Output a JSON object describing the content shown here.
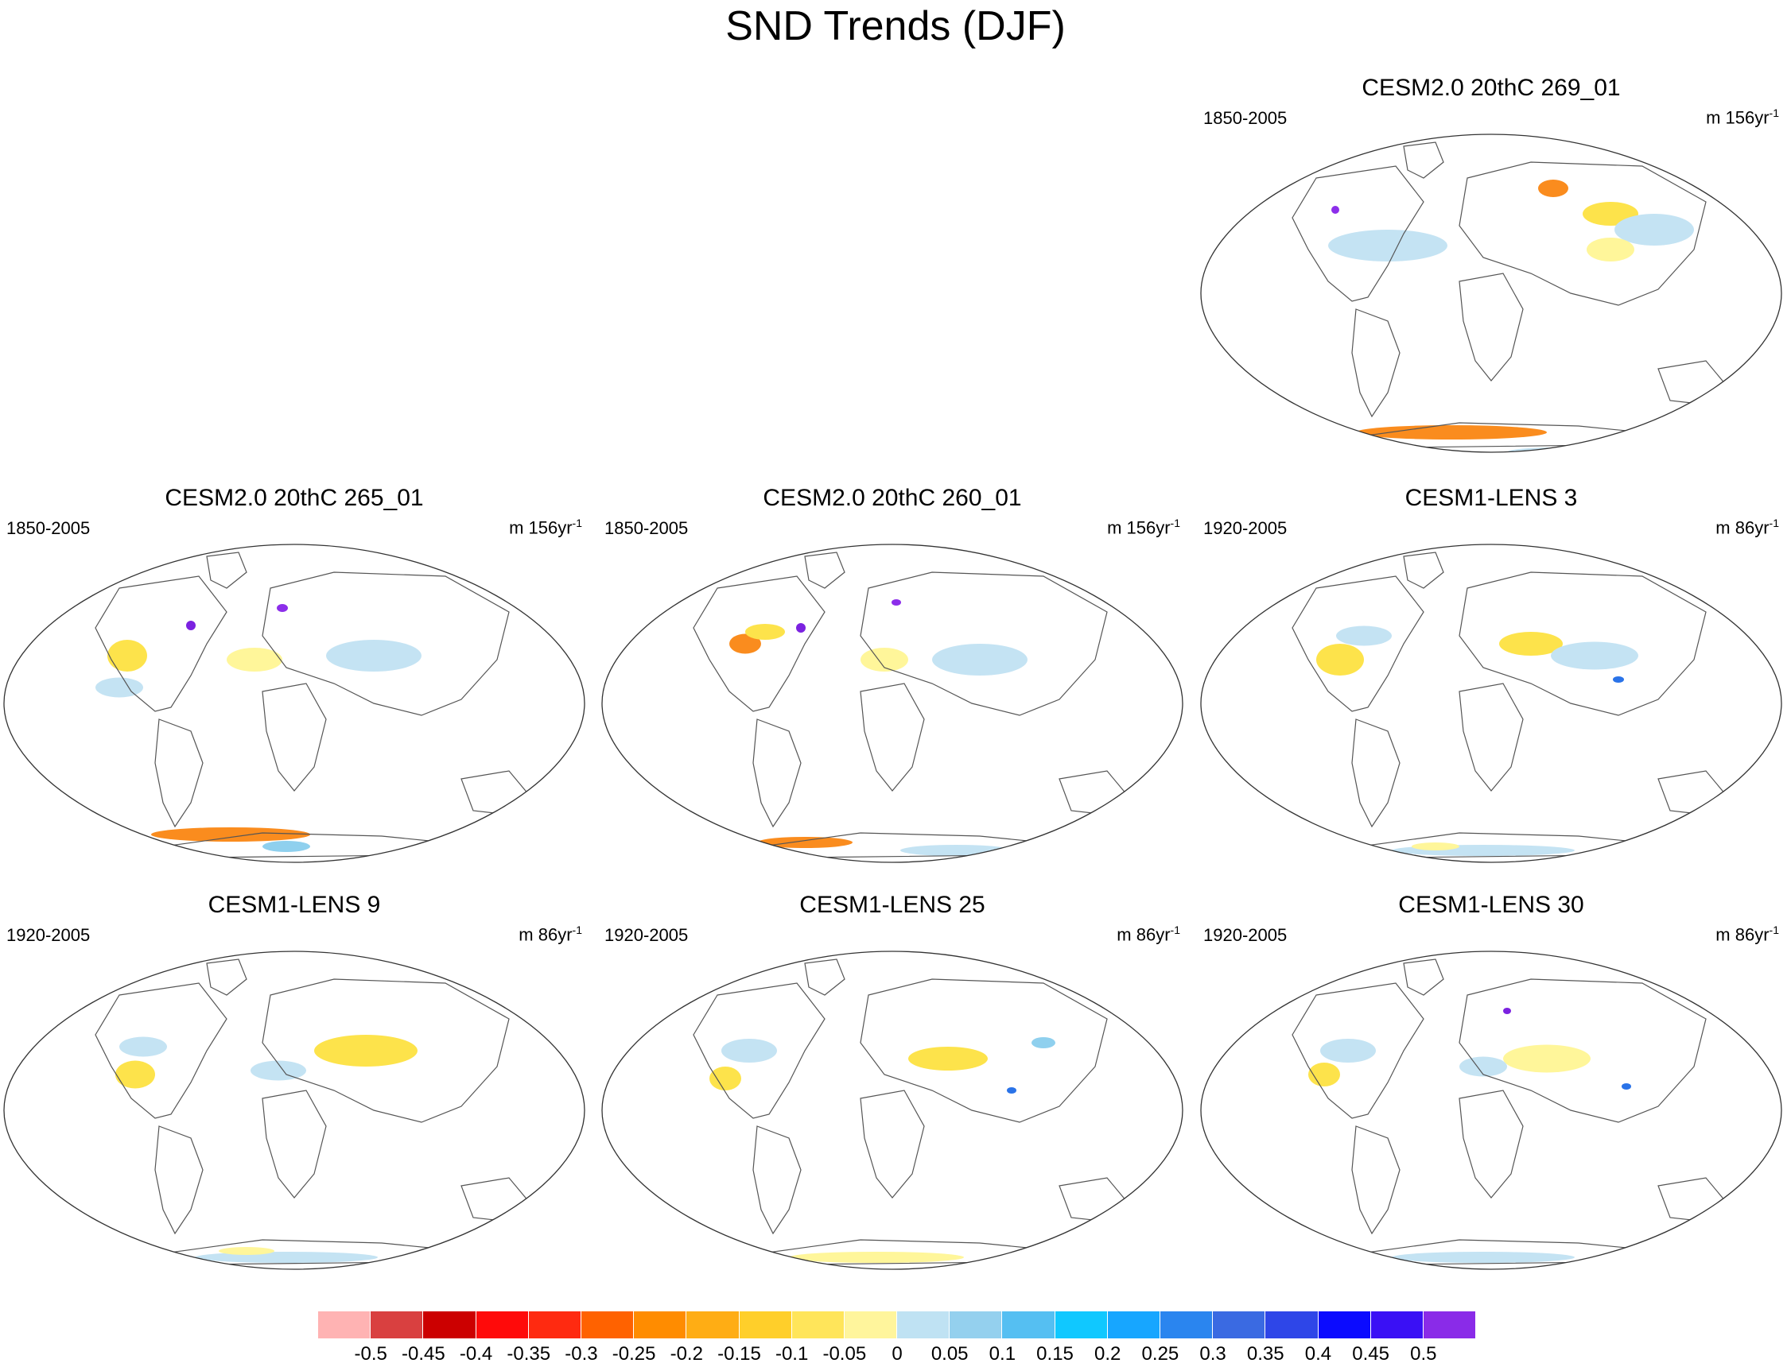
{
  "title": "SND Trends (DJF)",
  "panels": [
    {
      "title": "CESM2.0 20thC 269_01",
      "period": "1850-2005",
      "units": "m 156yr",
      "units_exp": "-1",
      "blobs": [
        [
          "#fde34b",
          520,
          105,
          70,
          30
        ],
        [
          "#fa8c1e",
          448,
          73,
          38,
          22
        ],
        [
          "#c4e3f3",
          240,
          145,
          150,
          40
        ],
        [
          "#c4e3f3",
          575,
          125,
          100,
          40
        ],
        [
          "#fff69a",
          520,
          150,
          60,
          30
        ],
        [
          "#8c2eea",
          174,
          100,
          10,
          10
        ],
        [
          "#fa8c1e",
          320,
          380,
          240,
          18
        ],
        [
          "#ff3c1e",
          210,
          400,
          60,
          12
        ],
        [
          "#c4e3f3",
          450,
          405,
          120,
          12
        ]
      ]
    },
    {
      "title": "CESM2.0 20thC 265_01",
      "period": "1850-2005",
      "units": "m 156yr",
      "units_exp": "-1",
      "blobs": [
        [
          "#fde34b",
          160,
          145,
          50,
          40
        ],
        [
          "#c4e3f3",
          470,
          145,
          120,
          40
        ],
        [
          "#fff69a",
          320,
          150,
          70,
          30
        ],
        [
          "#c4e3f3",
          150,
          185,
          60,
          25
        ],
        [
          "#7b22e0",
          240,
          107,
          12,
          12
        ],
        [
          "#8c2eea",
          355,
          85,
          14,
          10
        ],
        [
          "#fa8c1e",
          290,
          370,
          200,
          18
        ],
        [
          "#8fd0ee",
          360,
          385,
          60,
          14
        ]
      ]
    },
    {
      "title": "CESM2.0 20thC 260_01",
      "period": "1850-2005",
      "units": "m 156yr",
      "units_exp": "-1",
      "blobs": [
        [
          "#fa8c1e",
          185,
          130,
          40,
          25
        ],
        [
          "#c4e3f3",
          480,
          150,
          120,
          40
        ],
        [
          "#fff69a",
          360,
          150,
          60,
          30
        ],
        [
          "#fde34b",
          210,
          115,
          50,
          20
        ],
        [
          "#7b22e0",
          255,
          110,
          12,
          12
        ],
        [
          "#8c2eea",
          375,
          78,
          12,
          8
        ],
        [
          "#fa8c1e",
          260,
          380,
          120,
          14
        ],
        [
          "#c4e3f3",
          450,
          390,
          140,
          14
        ]
      ]
    },
    {
      "title": "CESM1-LENS 3",
      "period": "1920-2005",
      "units": "m 86yr",
      "units_exp": "-1",
      "blobs": [
        [
          "#fde34b",
          180,
          150,
          60,
          40
        ],
        [
          "#c4e3f3",
          210,
          120,
          70,
          25
        ],
        [
          "#fde34b",
          420,
          130,
          80,
          30
        ],
        [
          "#c4e3f3",
          500,
          145,
          110,
          35
        ],
        [
          "#2a73e8",
          530,
          175,
          14,
          8
        ],
        [
          "#c4e3f3",
          360,
          390,
          230,
          14
        ],
        [
          "#fff69a",
          300,
          385,
          60,
          10
        ]
      ]
    },
    {
      "title": "CESM1-LENS 9",
      "period": "1920-2005",
      "units": "m 86yr",
      "units_exp": "-1",
      "blobs": [
        [
          "#c4e3f3",
          180,
          125,
          60,
          25
        ],
        [
          "#fde34b",
          170,
          160,
          50,
          35
        ],
        [
          "#fde34b",
          460,
          130,
          130,
          40
        ],
        [
          "#c4e3f3",
          350,
          155,
          70,
          25
        ],
        [
          "#c4e3f3",
          360,
          390,
          230,
          14
        ],
        [
          "#fff69a",
          310,
          382,
          70,
          10
        ]
      ]
    },
    {
      "title": "CESM1-LENS 25",
      "period": "1920-2005",
      "units": "m 86yr",
      "units_exp": "-1",
      "blobs": [
        [
          "#c4e3f3",
          190,
          130,
          70,
          30
        ],
        [
          "#fde34b",
          160,
          165,
          40,
          30
        ],
        [
          "#fa8c1e",
          455,
          135,
          40,
          16
        ],
        [
          "#fde34b",
          440,
          140,
          100,
          30
        ],
        [
          "#8fd0ee",
          560,
          120,
          30,
          14
        ],
        [
          "#2a73e8",
          520,
          180,
          12,
          8
        ],
        [
          "#fff69a",
          350,
          390,
          220,
          14
        ]
      ]
    },
    {
      "title": "CESM1-LENS 30",
      "period": "1920-2005",
      "units": "m 86yr",
      "units_exp": "-1",
      "blobs": [
        [
          "#c4e3f3",
          190,
          130,
          70,
          30
        ],
        [
          "#fde34b",
          160,
          160,
          40,
          30
        ],
        [
          "#fff69a",
          440,
          140,
          110,
          35
        ],
        [
          "#c4e3f3",
          360,
          150,
          60,
          25
        ],
        [
          "#2a73e8",
          540,
          175,
          12,
          8
        ],
        [
          "#7b22e0",
          390,
          80,
          10,
          8
        ],
        [
          "#c4e3f3",
          360,
          390,
          230,
          14
        ]
      ]
    }
  ],
  "colorbar": {
    "colors": [
      "#ffb3b3",
      "#d94040",
      "#cc0000",
      "#ff0a0a",
      "#ff2a10",
      "#ff6200",
      "#ff8c00",
      "#ffad14",
      "#ffcf2a",
      "#ffe55a",
      "#fff59c",
      "#bfe2f3",
      "#94d0ee",
      "#55bff2",
      "#10c8ff",
      "#17a6ff",
      "#2a85ef",
      "#3a6ae2",
      "#2e46e8",
      "#0b0bff",
      "#3a10f5",
      "#8a2be8"
    ],
    "labels": [
      "-0.5",
      "-0.45",
      "-0.4",
      "-0.35",
      "-0.3",
      "-0.25",
      "-0.2",
      "-0.15",
      "-0.1",
      "-0.05",
      "0",
      "0.05",
      "0.1",
      "0.15",
      "0.2",
      "0.25",
      "0.3",
      "0.35",
      "0.4",
      "0.45",
      "0.5"
    ]
  }
}
